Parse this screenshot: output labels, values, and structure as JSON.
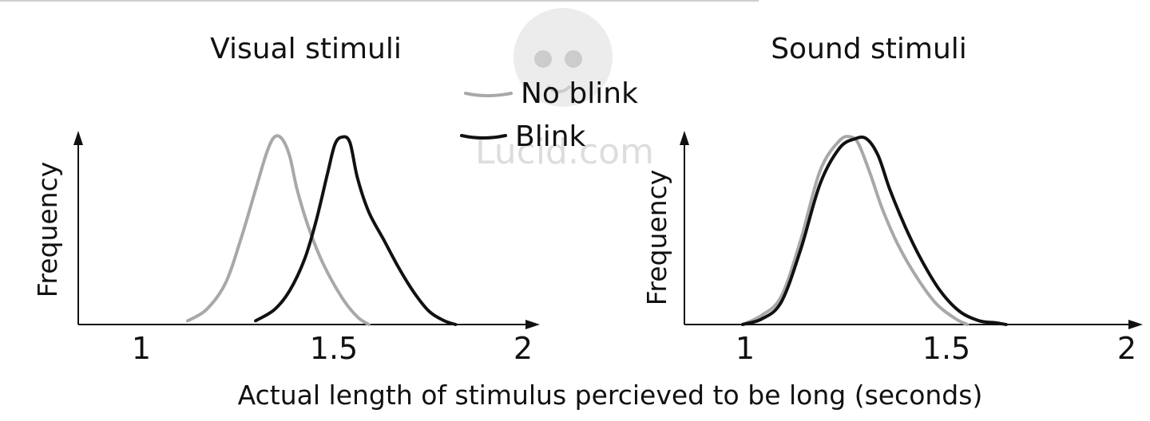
{
  "chart_data": [
    {
      "type": "line",
      "title": "Visual stimuli",
      "xlabel": "Actual length of stimulus percieved to be long (seconds)",
      "ylabel": "Frequency",
      "xlim": [
        0.84,
        2.04
      ],
      "ylim": [
        0,
        1.05
      ],
      "xticks": [
        "1",
        "1.5",
        "2"
      ],
      "series": [
        {
          "name": "No blink",
          "color": "#a8a8a8",
          "x": [
            1.13,
            1.18,
            1.23,
            1.27,
            1.31,
            1.34,
            1.36,
            1.38,
            1.4,
            1.42,
            1.45,
            1.49,
            1.54,
            1.58,
            1.61
          ],
          "y": [
            0.02,
            0.08,
            0.22,
            0.45,
            0.72,
            0.92,
            1.0,
            0.99,
            0.9,
            0.72,
            0.52,
            0.32,
            0.14,
            0.04,
            0.0
          ]
        },
        {
          "name": "Blink",
          "color": "#111111",
          "x": [
            1.31,
            1.36,
            1.4,
            1.44,
            1.47,
            1.5,
            1.52,
            1.54,
            1.56,
            1.58,
            1.61,
            1.65,
            1.69,
            1.73,
            1.77,
            1.81,
            1.84
          ],
          "y": [
            0.02,
            0.08,
            0.18,
            0.35,
            0.55,
            0.8,
            0.96,
            1.0,
            0.97,
            0.78,
            0.6,
            0.45,
            0.3,
            0.17,
            0.07,
            0.02,
            0.0
          ]
        }
      ]
    },
    {
      "type": "line",
      "title": "Sound stimuli",
      "xlabel": "Actual length of stimulus percieved to be long (seconds)",
      "ylabel": "Frequency",
      "xlim": [
        0.85,
        2.01
      ],
      "ylim": [
        0,
        1.05
      ],
      "xticks": [
        "1",
        "1.5",
        "2"
      ],
      "series": [
        {
          "name": "No blink",
          "color": "#a8a8a8",
          "x": [
            1.0,
            1.05,
            1.1,
            1.15,
            1.2,
            1.25,
            1.28,
            1.3,
            1.33,
            1.36,
            1.4,
            1.45,
            1.5,
            1.55,
            1.58
          ],
          "y": [
            0.0,
            0.05,
            0.15,
            0.45,
            0.82,
            0.98,
            1.0,
            0.96,
            0.8,
            0.62,
            0.43,
            0.25,
            0.11,
            0.03,
            0.0
          ]
        },
        {
          "name": "Blink",
          "color": "#111111",
          "x": [
            1.0,
            1.05,
            1.1,
            1.15,
            1.2,
            1.25,
            1.29,
            1.32,
            1.35,
            1.38,
            1.42,
            1.46,
            1.51,
            1.56,
            1.61,
            1.65,
            1.68
          ],
          "y": [
            0.0,
            0.03,
            0.12,
            0.4,
            0.75,
            0.94,
            0.99,
            0.99,
            0.9,
            0.72,
            0.52,
            0.35,
            0.18,
            0.07,
            0.02,
            0.01,
            0.0
          ]
        }
      ]
    }
  ],
  "legend": {
    "items": [
      {
        "label": "No blink",
        "color": "#a8a8a8"
      },
      {
        "label": "Blink",
        "color": "#111111"
      }
    ]
  },
  "watermark": {
    "text": "Lucid.com"
  }
}
